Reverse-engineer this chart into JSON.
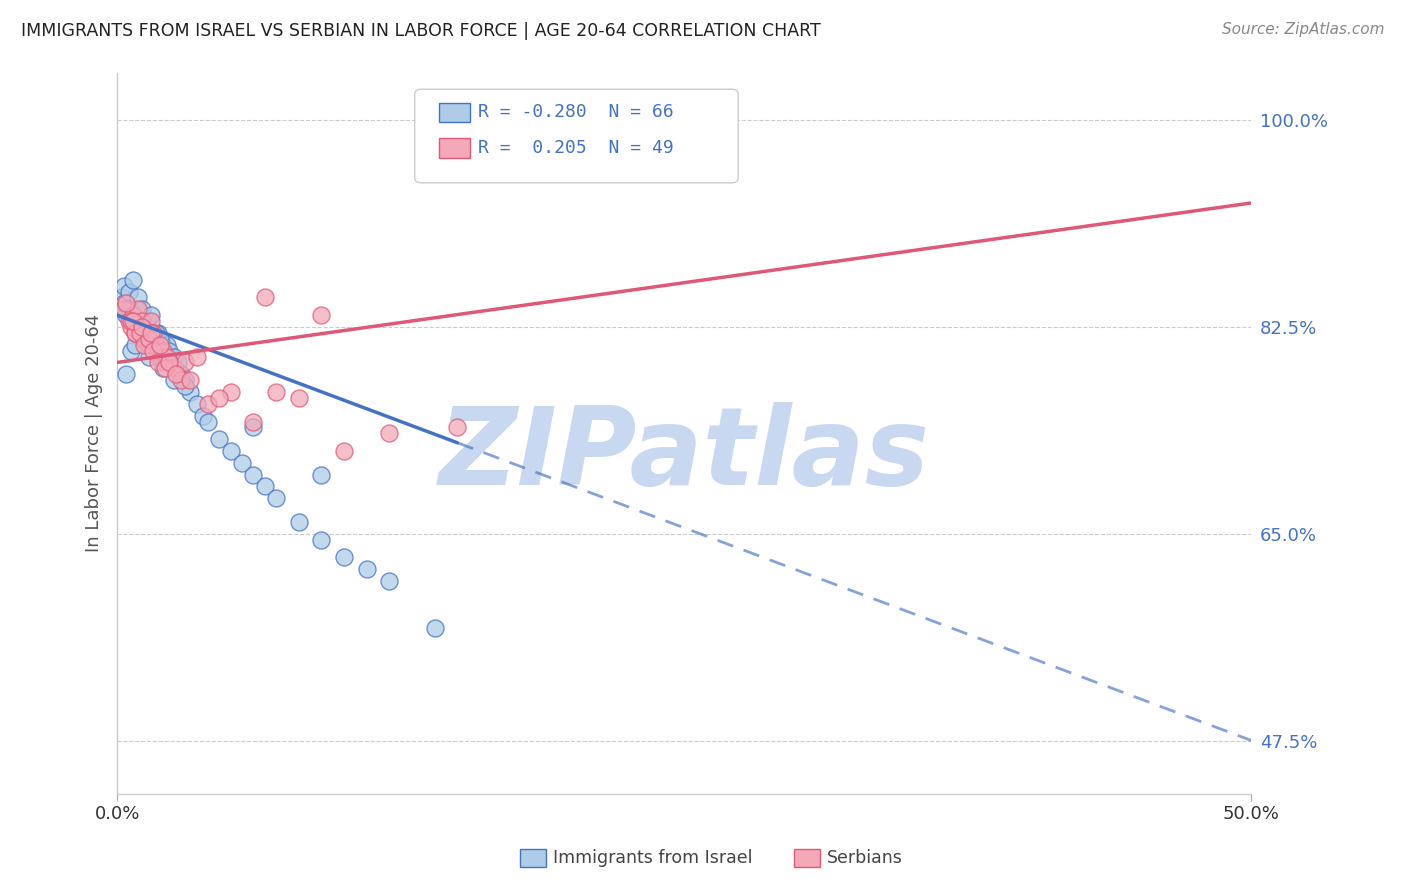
{
  "title": "IMMIGRANTS FROM ISRAEL VS SERBIAN IN LABOR FORCE | AGE 20-64 CORRELATION CHART",
  "source": "Source: ZipAtlas.com",
  "ylabel": "In Labor Force | Age 20-64",
  "ytick_vals": [
    47.5,
    65.0,
    82.5,
    100.0
  ],
  "xmin": 0.0,
  "xmax": 50.0,
  "ymin": 43.0,
  "ymax": 104.0,
  "legend_r_israel": "-0.280",
  "legend_n_israel": "66",
  "legend_r_serbian": "0.205",
  "legend_n_serbian": "49",
  "color_israel_fill": "#aecce8",
  "color_serbian_fill": "#f4a8b8",
  "color_trend_israel": "#4472c4",
  "color_trend_serbian": "#e05878",
  "color_text_blue": "#4472c4",
  "color_watermark": "#c8d8f0",
  "watermark_text": "ZIPatlas",
  "trend_israel_b0": 83.5,
  "trend_israel_b1": -0.72,
  "trend_israel_solid_end": 15.0,
  "trend_serbian_b0": 79.5,
  "trend_serbian_b1": 0.27,
  "israel_x": [
    0.2,
    0.3,
    0.4,
    0.5,
    0.6,
    0.7,
    0.8,
    0.9,
    1.0,
    1.1,
    1.2,
    1.3,
    1.4,
    1.5,
    1.6,
    1.7,
    1.8,
    1.9,
    2.0,
    2.1,
    2.2,
    2.3,
    2.4,
    2.5,
    2.6,
    2.7,
    2.8,
    3.0,
    3.2,
    3.5,
    3.8,
    4.0,
    4.5,
    5.0,
    5.5,
    6.0,
    6.5,
    7.0,
    8.0,
    9.0,
    10.0,
    11.0,
    12.0,
    0.3,
    0.5,
    0.7,
    0.9,
    1.1,
    1.3,
    1.5,
    1.7,
    1.9,
    2.1,
    2.3,
    2.5,
    0.4,
    0.6,
    0.8,
    1.0,
    1.2,
    1.4,
    2.0,
    3.0,
    6.0,
    9.0,
    14.0
  ],
  "israel_y": [
    85.0,
    84.5,
    83.5,
    84.0,
    83.0,
    83.5,
    82.5,
    83.0,
    82.0,
    83.5,
    82.0,
    82.5,
    81.5,
    82.0,
    81.0,
    81.5,
    82.0,
    80.5,
    81.0,
    80.0,
    81.0,
    80.5,
    79.5,
    80.0,
    79.0,
    79.5,
    78.5,
    78.0,
    77.0,
    76.0,
    75.0,
    74.5,
    73.0,
    72.0,
    71.0,
    70.0,
    69.0,
    68.0,
    66.0,
    64.5,
    63.0,
    62.0,
    61.0,
    86.0,
    85.5,
    86.5,
    85.0,
    84.0,
    83.0,
    83.5,
    82.0,
    81.5,
    80.0,
    79.5,
    78.0,
    78.5,
    80.5,
    81.0,
    82.0,
    81.5,
    80.0,
    79.0,
    77.5,
    74.0,
    70.0,
    57.0
  ],
  "serbian_x": [
    0.3,
    0.5,
    0.6,
    0.7,
    0.8,
    0.9,
    1.0,
    1.1,
    1.2,
    1.3,
    1.4,
    1.5,
    1.6,
    1.7,
    1.8,
    1.9,
    2.0,
    2.2,
    2.5,
    2.8,
    3.0,
    3.5,
    4.0,
    5.0,
    6.0,
    7.0,
    9.0,
    10.0,
    12.0,
    15.0,
    0.4,
    0.6,
    0.8,
    1.0,
    1.2,
    1.4,
    1.6,
    1.8,
    2.1,
    2.3,
    2.6,
    3.2,
    4.5,
    6.5,
    8.0,
    0.7,
    1.1,
    1.5,
    1.9
  ],
  "serbian_y": [
    84.0,
    83.0,
    82.5,
    83.5,
    82.0,
    84.0,
    82.5,
    83.0,
    81.5,
    82.0,
    81.0,
    83.0,
    82.0,
    81.0,
    80.5,
    80.0,
    80.5,
    80.0,
    79.0,
    78.0,
    79.5,
    80.0,
    76.0,
    77.0,
    74.5,
    77.0,
    83.5,
    72.0,
    73.5,
    74.0,
    84.5,
    83.0,
    82.0,
    82.0,
    81.0,
    81.5,
    80.5,
    79.5,
    79.0,
    79.5,
    78.5,
    78.0,
    76.5,
    85.0,
    76.5,
    83.0,
    82.5,
    82.0,
    81.0
  ]
}
